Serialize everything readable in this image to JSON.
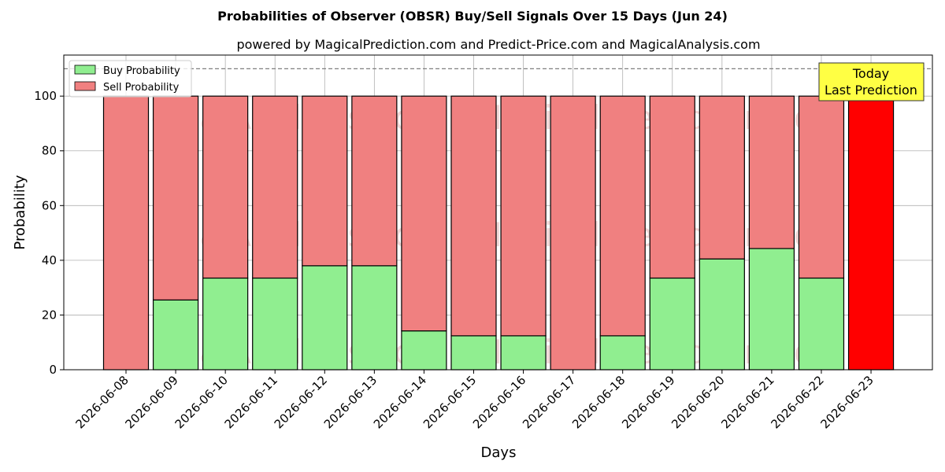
{
  "chart_data": {
    "type": "bar",
    "stacked": true,
    "title": "Probabilities of Observer (OBSR) Buy/Sell Signals Over 15 Days (Jun 24)",
    "subtitle": "powered by MagicalPrediction.com and Predict-Price.com and MagicalAnalysis.com",
    "xlabel": "Days",
    "ylabel": "Probability",
    "ylim": [
      0,
      115
    ],
    "yticks": [
      0,
      20,
      40,
      60,
      80,
      100
    ],
    "grid": true,
    "legend_position": "top-left",
    "reference_line": 110,
    "categories": [
      "2026-06-08",
      "2026-06-09",
      "2026-06-10",
      "2026-06-11",
      "2026-06-12",
      "2026-06-13",
      "2026-06-14",
      "2026-06-15",
      "2026-06-16",
      "2026-06-17",
      "2026-06-18",
      "2026-06-19",
      "2026-06-20",
      "2026-06-21",
      "2026-06-22",
      "2026-06-23"
    ],
    "series": [
      {
        "name": "Buy Probability",
        "color": "#90ee90",
        "values": [
          0,
          25.5,
          33.5,
          33.5,
          38,
          38,
          14.2,
          12.4,
          12.4,
          0,
          12.4,
          33.5,
          40.5,
          44.3,
          33.5,
          0
        ]
      },
      {
        "name": "Sell Probability",
        "color": "#f08080",
        "values": [
          100,
          74.5,
          66.5,
          66.5,
          62,
          62,
          85.8,
          87.6,
          87.6,
          100,
          87.6,
          66.5,
          59.5,
          55.7,
          66.5,
          100
        ]
      }
    ],
    "highlight": {
      "index": 15,
      "color": "#ff0000"
    },
    "annotation": {
      "line1": "Today",
      "line2": "Last Prediction",
      "background": "#ffff44"
    },
    "watermarks": [
      "MagicalAnalysis.com",
      "MagicalPrediction.com"
    ]
  }
}
